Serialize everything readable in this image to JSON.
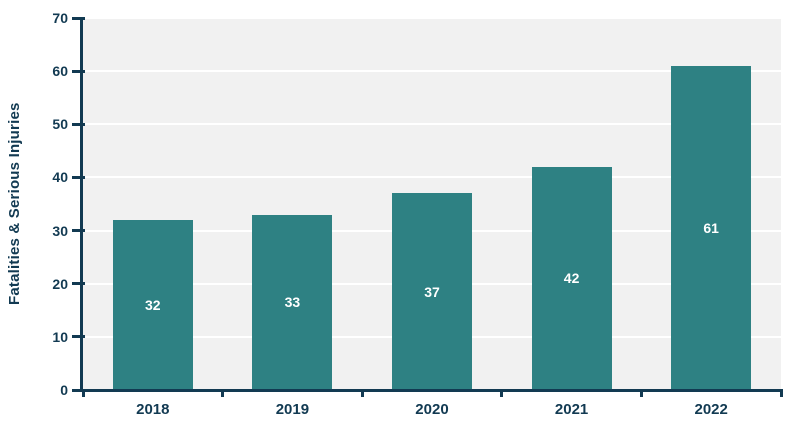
{
  "chart_data": {
    "type": "bar",
    "categories": [
      "2018",
      "2019",
      "2020",
      "2021",
      "2022"
    ],
    "values": [
      32,
      33,
      37,
      42,
      61
    ],
    "bar_labels": [
      "32",
      "33",
      "37",
      "42",
      "61"
    ],
    "ylabel": "Fatalities & Serious Injuries",
    "xlabel": "",
    "title": "",
    "ylim": [
      0,
      70
    ],
    "yticks": [
      0,
      10,
      20,
      30,
      40,
      50,
      60,
      70
    ],
    "grid": true,
    "legend": "none",
    "colors": {
      "bar": "#2E8183",
      "axis": "#123A52",
      "tick_label": "#123A52",
      "plot_background": "#F1F1F1",
      "gridline": "#FFFFFF",
      "bar_label": "#FFFFFF",
      "page_background": "#FFFFFF"
    }
  }
}
